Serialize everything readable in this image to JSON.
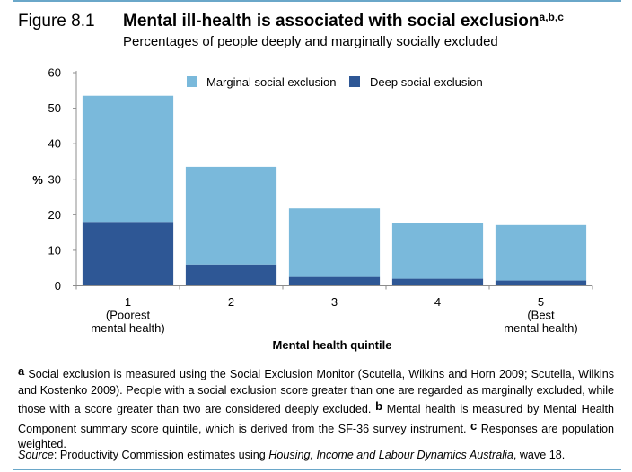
{
  "figure_label": "Figure 8.1",
  "title": "Mental ill-health is associated with social exclusion",
  "title_marks": "a,b,c",
  "subtitle": "Percentages of people deeply and marginally socially excluded",
  "chart_data": {
    "type": "bar",
    "stacked": true,
    "categories": [
      "1\n(Poorest\nmental health)",
      "2",
      "3",
      "4",
      "5\n(Best\nmental health)"
    ],
    "series": [
      {
        "name": "Deep social exclusion",
        "values": [
          18,
          6,
          2.5,
          2,
          1.5
        ],
        "color": "#2e5795"
      },
      {
        "name": "Marginal social exclusion",
        "values": [
          35.5,
          27.5,
          19.3,
          15.7,
          15.6
        ],
        "color": "#7ab9db"
      }
    ],
    "totals": [
      53.5,
      33.5,
      21.8,
      17.7,
      17.1
    ],
    "xlabel": "Mental health quintile",
    "ylabel": "%",
    "ylim": [
      0,
      60
    ],
    "yticks": [
      "0",
      "10",
      "20",
      "30",
      "40",
      "50",
      "60"
    ],
    "legend_order": [
      "Marginal social exclusion",
      "Deep social exclusion"
    ],
    "legend_position": "top-right",
    "grid": false
  },
  "notes": {
    "a_mark": "a",
    "a_text": " Social exclusion is measured using the Social Exclusion Monitor (Scutella, Wilkins and Horn 2009; Scutella, Wilkins and Kostenko 2009). People with a social exclusion score greater than one are regarded as marginally excluded, while those with a score greater than two are considered deeply excluded.",
    "b_mark": "b",
    "b_text": " Mental health is measured by Mental Health Component summary score quintile, which is derived from the SF-36 survey instrument.",
    "c_mark": "c",
    "c_text": " Responses are population weighted."
  },
  "source": {
    "label": "Source",
    "text_1": ": Productivity Commission estimates using ",
    "italic": "Housing, Income and Labour Dynamics Australia",
    "text_2": ", wave 18."
  }
}
